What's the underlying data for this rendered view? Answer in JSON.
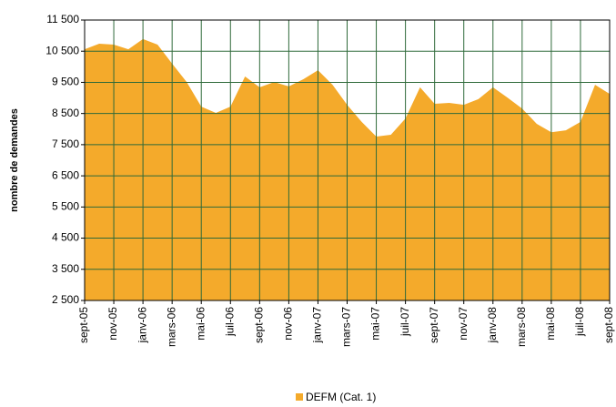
{
  "chart_data": {
    "type": "area",
    "y_label": "nombre de demandes",
    "categories": [
      "sept-05",
      null,
      "nov-05",
      null,
      "janv-06",
      null,
      "mars-06",
      null,
      "mai-06",
      null,
      "juil-06",
      null,
      "sept-06",
      null,
      "nov-06",
      null,
      "janv-07",
      null,
      "mars-07",
      null,
      "mai-07",
      null,
      "juil-07",
      null,
      "sept-07",
      null,
      "nov-07",
      null,
      "janv-08",
      null,
      "mars-08",
      null,
      "mai-08",
      null,
      "juil-08",
      null,
      "sept-08"
    ],
    "series": [
      {
        "name": "DEFM (Cat. 1)",
        "color": "#f4aa2b",
        "values": [
          10560,
          10740,
          10710,
          10560,
          10890,
          10710,
          10100,
          9510,
          8720,
          8520,
          8720,
          9690,
          9340,
          9510,
          9370,
          9600,
          9890,
          9420,
          8780,
          8230,
          7760,
          7820,
          8340,
          9340,
          8810,
          8840,
          8780,
          8960,
          9340,
          9010,
          8660,
          8170,
          7900,
          7960,
          8230,
          9420,
          9130
        ]
      }
    ],
    "ylim": [
      2500,
      11500
    ],
    "yticks": [
      {
        "value": 2500,
        "label": "2 500"
      },
      {
        "value": 3500,
        "label": "3 500"
      },
      {
        "value": 4500,
        "label": "4 500"
      },
      {
        "value": 5500,
        "label": "5 500"
      },
      {
        "value": 6500,
        "label": "6 500"
      },
      {
        "value": 7500,
        "label": "7 500"
      },
      {
        "value": 8500,
        "label": "8 500"
      },
      {
        "value": 9500,
        "label": "9 500"
      },
      {
        "value": 10500,
        "label": "10 500"
      },
      {
        "value": 11500,
        "label": "11 500"
      }
    ],
    "grid": true,
    "grid_color": "#2f6a3a",
    "legend": "bottom"
  }
}
